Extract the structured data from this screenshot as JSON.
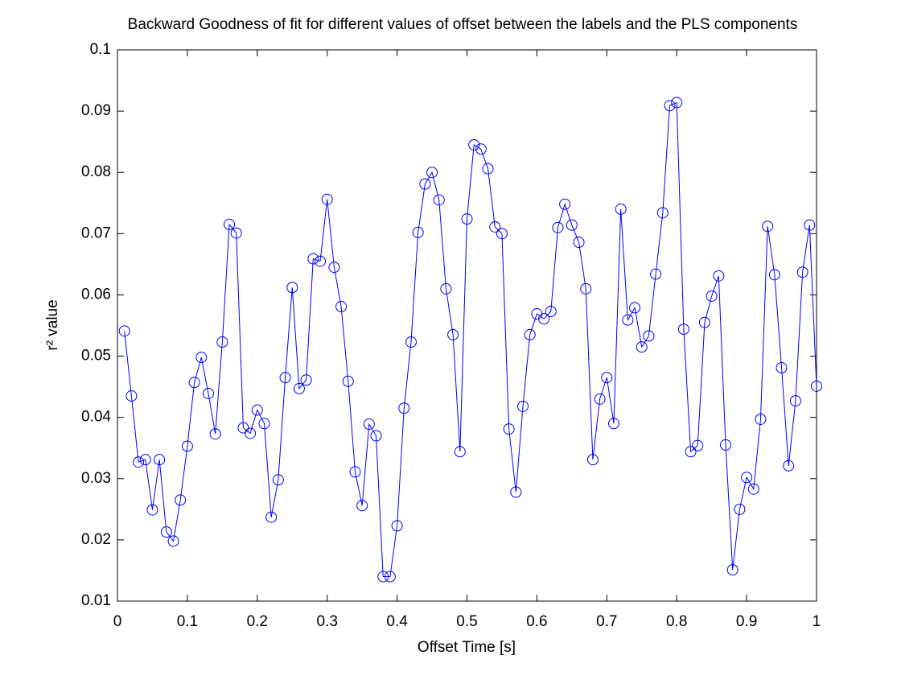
{
  "chart_data": {
    "type": "line",
    "title": "Backward Goodness of fit for different values of offset between the labels and the PLS components",
    "x_label": "Offset Time [s]",
    "y_label": "r² value",
    "x": [
      0.01,
      0.02,
      0.03,
      0.04,
      0.05,
      0.06,
      0.07,
      0.08,
      0.09,
      0.1,
      0.11,
      0.12,
      0.13,
      0.14,
      0.15,
      0.16,
      0.17,
      0.18,
      0.19,
      0.2,
      0.21,
      0.22,
      0.23,
      0.24,
      0.25,
      0.26,
      0.27,
      0.28,
      0.29,
      0.3,
      0.31,
      0.32,
      0.33,
      0.34,
      0.35,
      0.36,
      0.37,
      0.38,
      0.39,
      0.4,
      0.41,
      0.42,
      0.43,
      0.44,
      0.45,
      0.46,
      0.47,
      0.48,
      0.49,
      0.5,
      0.51,
      0.52,
      0.53,
      0.54,
      0.55,
      0.56,
      0.57,
      0.58,
      0.59,
      0.6,
      0.61,
      0.62,
      0.63,
      0.64,
      0.65,
      0.66,
      0.67,
      0.68,
      0.69,
      0.7,
      0.71,
      0.72,
      0.73,
      0.74,
      0.75,
      0.76,
      0.77,
      0.78,
      0.79,
      0.8,
      0.81,
      0.82,
      0.83,
      0.84,
      0.85,
      0.86,
      0.87,
      0.88,
      0.89,
      0.9,
      0.91,
      0.92,
      0.93,
      0.94,
      0.95,
      0.96,
      0.97,
      0.98,
      0.99,
      1
    ],
    "series": [
      {
        "color": "#0000ff",
        "marker": "circle",
        "values": [
          0.0541,
          0.0435,
          0.0327,
          0.0331,
          0.0249,
          0.0331,
          0.0213,
          0.0198,
          0.0265,
          0.0353,
          0.0457,
          0.0498,
          0.0439,
          0.0373,
          0.0523,
          0.0715,
          0.0701,
          0.0383,
          0.0374,
          0.0412,
          0.039,
          0.0237,
          0.0298,
          0.0465,
          0.0612,
          0.0447,
          0.0461,
          0.0659,
          0.0655,
          0.0756,
          0.0645,
          0.0581,
          0.0459,
          0.0311,
          0.0256,
          0.0389,
          0.037,
          0.014,
          0.014,
          0.0223,
          0.0415,
          0.0523,
          0.0702,
          0.0781,
          0.08,
          0.0755,
          0.061,
          0.0535,
          0.0344,
          0.0724,
          0.0845,
          0.0838,
          0.0806,
          0.0711,
          0.07,
          0.0381,
          0.0278,
          0.0418,
          0.0535,
          0.0569,
          0.0561,
          0.0573,
          0.071,
          0.0748,
          0.0714,
          0.0686,
          0.061,
          0.0331,
          0.043,
          0.0465,
          0.039,
          0.074,
          0.0559,
          0.0579,
          0.0515,
          0.0533,
          0.0634,
          0.0734,
          0.0909,
          0.0914,
          0.0544,
          0.0344,
          0.0354,
          0.0555,
          0.0598,
          0.0631,
          0.0355,
          0.0151,
          0.025,
          0.0302,
          0.0283,
          0.0397,
          0.0712,
          0.0633,
          0.0481,
          0.0321,
          0.0427,
          0.0637,
          0.0714,
          0.0451
        ]
      }
    ],
    "xlim": [
      0,
      1
    ],
    "xticks": [
      0,
      0.1,
      0.2,
      0.3,
      0.4,
      0.5,
      0.6,
      0.7,
      0.8,
      0.9,
      1
    ],
    "ylim": [
      0.01,
      0.1
    ],
    "yticks": [
      0.01,
      0.02,
      0.03,
      0.04,
      0.05,
      0.06,
      0.07,
      0.08,
      0.09,
      0.1
    ],
    "grid": false
  }
}
